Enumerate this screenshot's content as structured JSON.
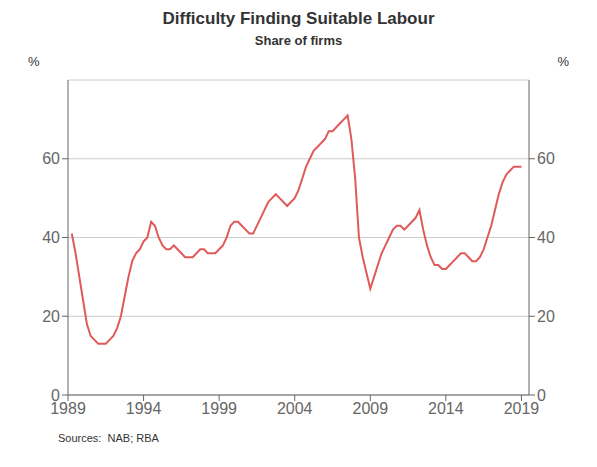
{
  "chart_data": {
    "type": "line",
    "title": "Difficulty Finding Suitable Labour",
    "subtitle": "Share of firms",
    "y_label": "%",
    "y2_label": "%",
    "annotations": [
      "Sources:  NAB; RBA"
    ],
    "color": "#e05a5a",
    "grid": "y",
    "xlim": [
      1989.0,
      2019.5
    ],
    "xticks": [
      1989,
      1994,
      1999,
      2004,
      2009,
      2014,
      2019
    ],
    "ylim": [
      0,
      80
    ],
    "yticks": [
      0,
      20,
      40,
      60
    ],
    "y2lim": [
      0,
      80
    ],
    "y2ticks": [
      0,
      20,
      40,
      60
    ],
    "x": [
      1989.25,
      1989.5,
      1989.75,
      1990.0,
      1990.25,
      1990.5,
      1990.75,
      1991.0,
      1991.25,
      1991.5,
      1991.75,
      1992.0,
      1992.25,
      1992.5,
      1992.75,
      1993.0,
      1993.25,
      1993.5,
      1993.75,
      1994.0,
      1994.25,
      1994.5,
      1994.75,
      1995.0,
      1995.25,
      1995.5,
      1995.75,
      1996.0,
      1996.25,
      1996.5,
      1996.75,
      1997.0,
      1997.25,
      1997.5,
      1997.75,
      1998.0,
      1998.25,
      1998.5,
      1998.75,
      1999.0,
      1999.25,
      1999.5,
      1999.75,
      2000.0,
      2000.25,
      2000.5,
      2000.75,
      2001.0,
      2001.25,
      2001.5,
      2001.75,
      2002.0,
      2002.25,
      2002.5,
      2002.75,
      2003.0,
      2003.25,
      2003.5,
      2003.75,
      2004.0,
      2004.25,
      2004.5,
      2004.75,
      2005.0,
      2005.25,
      2005.5,
      2005.75,
      2006.0,
      2006.25,
      2006.5,
      2006.75,
      2007.0,
      2007.25,
      2007.5,
      2007.75,
      2008.0,
      2008.25,
      2008.5,
      2008.75,
      2009.0,
      2009.25,
      2009.5,
      2009.75,
      2010.0,
      2010.25,
      2010.5,
      2010.75,
      2011.0,
      2011.25,
      2011.5,
      2011.75,
      2012.0,
      2012.25,
      2012.5,
      2012.75,
      2013.0,
      2013.25,
      2013.5,
      2013.75,
      2014.0,
      2014.25,
      2014.5,
      2014.75,
      2015.0,
      2015.25,
      2015.5,
      2015.75,
      2016.0,
      2016.25,
      2016.5,
      2016.75,
      2017.0,
      2017.25,
      2017.5,
      2017.75,
      2018.0,
      2018.25,
      2018.5,
      2018.75,
      2019.0
    ],
    "values": [
      41,
      36,
      30,
      24,
      18,
      15,
      14,
      13,
      13,
      13,
      14,
      15,
      17,
      20,
      25,
      30,
      34,
      36,
      37,
      39,
      40,
      44,
      43,
      40,
      38,
      37,
      37,
      38,
      37,
      36,
      35,
      35,
      35,
      36,
      37,
      37,
      36,
      36,
      36,
      37,
      38,
      40,
      43,
      44,
      44,
      43,
      42,
      41,
      41,
      43,
      45,
      47,
      49,
      50,
      51,
      50,
      49,
      48,
      49,
      50,
      52,
      55,
      58,
      60,
      62,
      63,
      64,
      65,
      67,
      67,
      68,
      69,
      70,
      71,
      65,
      55,
      40,
      35,
      31,
      27,
      30,
      33,
      36,
      38,
      40,
      42,
      43,
      43,
      42,
      43,
      44,
      45,
      47,
      42,
      38,
      35,
      33,
      33,
      32,
      32,
      33,
      34,
      35,
      36,
      36,
      35,
      34,
      34,
      35,
      37,
      40,
      43,
      47,
      51,
      54,
      56,
      57,
      58,
      58,
      58
    ]
  }
}
